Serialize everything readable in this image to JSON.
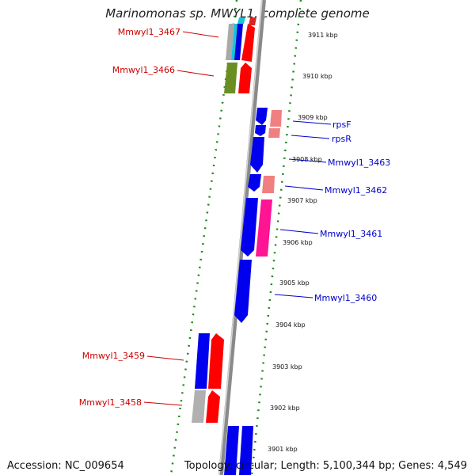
{
  "title": "Marinomonas sp. MWYL1, complete genome",
  "footer": {
    "accession": "Accession: NC_009654",
    "topology": "Topology: circular; Length: 5,100,344 bp; Genes: 4,549"
  },
  "colors": {
    "backbone": "#8a8a8a",
    "tick_marks": "#1d8a1d",
    "label_left": "#cc0000",
    "label_right": "#0000cc",
    "forward_strand": "#0000ff",
    "reverse_strand": "#ff0000",
    "olive_gene": "#6b8e23",
    "pink_gene": "#ff1493",
    "light_pink_gene": "#f08080",
    "grey_gene": "#b0b0b0",
    "cyan_gene": "#19c4d8"
  },
  "kbp_ticks": [
    "3911 kbp",
    "3910 kbp",
    "3909 kbp",
    "3908 kbp",
    "3907 kbp",
    "3906 kbp",
    "3905 kbp",
    "3904 kbp",
    "3903 kbp",
    "3902 kbp",
    "3901 kbp"
  ],
  "left_labels": [
    "Mmwyl1_3467",
    "Mmwyl1_3466",
    "Mmwyl1_3459",
    "Mmwyl1_3458"
  ],
  "right_labels": [
    "rpsF",
    "rpsR",
    "Mmwyl1_3463",
    "Mmwyl1_3462",
    "Mmwyl1_3461",
    "Mmwyl1_3460"
  ]
}
